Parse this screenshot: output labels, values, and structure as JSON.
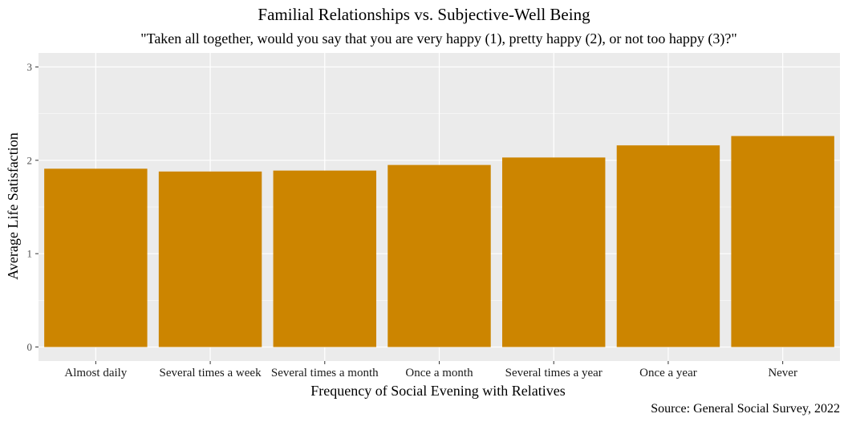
{
  "chart_data": {
    "type": "bar",
    "title": "Familial Relationships vs. Subjective-Well Being",
    "subtitle": "\"Taken all together, would you say that you are very happy (1), pretty happy (2), or not too happy (3)?\"",
    "xlabel": "Frequency of Social Evening with Relatives",
    "ylabel": "Average Life Satisfaction",
    "caption": "Source: General Social Survey, 2022",
    "categories": [
      "Almost daily",
      "Several times a week",
      "Several times a month",
      "Once a month",
      "Several times a year",
      "Once a year",
      "Never"
    ],
    "values": [
      1.91,
      1.88,
      1.89,
      1.95,
      2.03,
      2.16,
      2.26
    ],
    "ylim": [
      -0.15,
      3.15
    ],
    "yticks": [
      0,
      1,
      2,
      3
    ],
    "grid": true,
    "bar_color": "#CC8500",
    "panel_color": "#EBEBEB",
    "grid_color": "#FFFFFF"
  }
}
